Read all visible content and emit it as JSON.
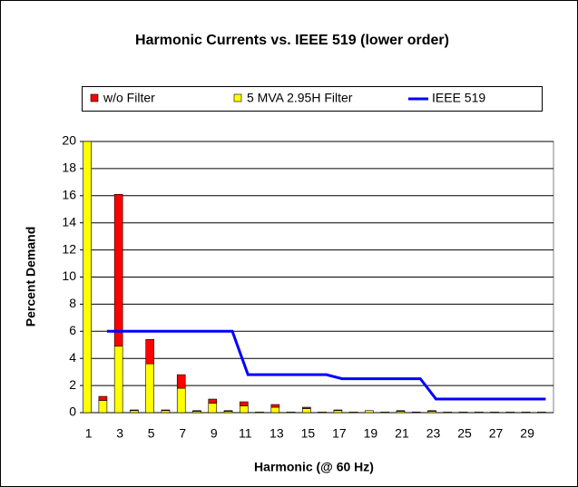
{
  "chart_data": {
    "type": "stacked-bar-line",
    "title": "Harmonic Currents vs. IEEE 519 (lower order)",
    "x_label": "Harmonic (@ 60 Hz)",
    "y_label": "Percent Demand",
    "categories": [
      1,
      null,
      3,
      null,
      5,
      null,
      7,
      null,
      9,
      null,
      11,
      null,
      13,
      null,
      15,
      null,
      17,
      null,
      19,
      null,
      21,
      null,
      23,
      null,
      25,
      null,
      27,
      null,
      29,
      null
    ],
    "series": [
      {
        "name": "5 MVA 2.95H Filter",
        "type": "bar",
        "color": "#ffff00",
        "values": [
          20,
          0.9,
          4.9,
          0.15,
          3.6,
          0.15,
          1.8,
          0.1,
          0.7,
          0.1,
          0.5,
          0.05,
          0.4,
          0.05,
          0.3,
          0.05,
          0.15,
          0.05,
          0.15,
          0.05,
          0.1,
          0,
          0.1,
          0.05,
          0.05,
          0.05,
          0.05,
          0.05,
          0.05,
          0.05
        ]
      },
      {
        "name": "w/o Filter",
        "type": "bar",
        "color": "#ff0000",
        "values": [
          0,
          0.3,
          11.2,
          0.05,
          1.8,
          0.05,
          1.0,
          0.05,
          0.3,
          0.05,
          0.3,
          0,
          0.2,
          0,
          0.1,
          0,
          0.05,
          0,
          0,
          0,
          0.05,
          0.05,
          0.05,
          0,
          0,
          0,
          0,
          0,
          0,
          0
        ]
      },
      {
        "name": "IEEE 519",
        "type": "line",
        "color": "#0000ff",
        "values": [
          null,
          6,
          6,
          6,
          6,
          6,
          6,
          6,
          6,
          6,
          2.8,
          2.8,
          2.8,
          2.8,
          2.8,
          2.8,
          2.5,
          2.5,
          2.5,
          2.5,
          2.5,
          2.5,
          1,
          1,
          1,
          1,
          1,
          1,
          1,
          1
        ]
      }
    ],
    "legend_order": [
      1,
      0,
      2
    ],
    "ylim": [
      0,
      20
    ],
    "yticks": [
      0,
      2,
      4,
      6,
      8,
      10,
      12,
      14,
      16,
      18,
      20
    ],
    "grid": true
  }
}
